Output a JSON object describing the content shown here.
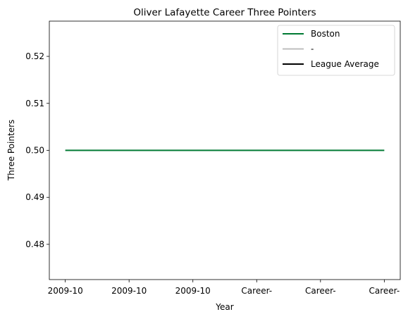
{
  "chart_data": {
    "type": "line",
    "title": "Oliver Lafayette Career Three Pointers",
    "x_label": "Year",
    "y_label": "Three Pointers",
    "categories": [
      "2009-10",
      "2009-10",
      "2009-10",
      "Career-",
      "Career-",
      "Career-"
    ],
    "series": [
      {
        "name": "Boston",
        "color": "#007a33",
        "values": [
          0.5,
          0.5,
          0.5,
          0.5,
          0.5,
          0.5
        ]
      },
      {
        "name": "-",
        "color": "#bebebe",
        "values": [
          null,
          null,
          null,
          null,
          null,
          null
        ]
      },
      {
        "name": "League Average",
        "color": "#000000",
        "values": [
          null,
          null,
          null,
          null,
          null,
          null
        ]
      }
    ],
    "ylim": [
      0.4725,
      0.5275
    ],
    "yticks": [
      0.48,
      0.49,
      {
        "value": 0.5,
        "label": "0.50"
      },
      0.51,
      0.52
    ],
    "legend": "upper right",
    "grid": false
  }
}
